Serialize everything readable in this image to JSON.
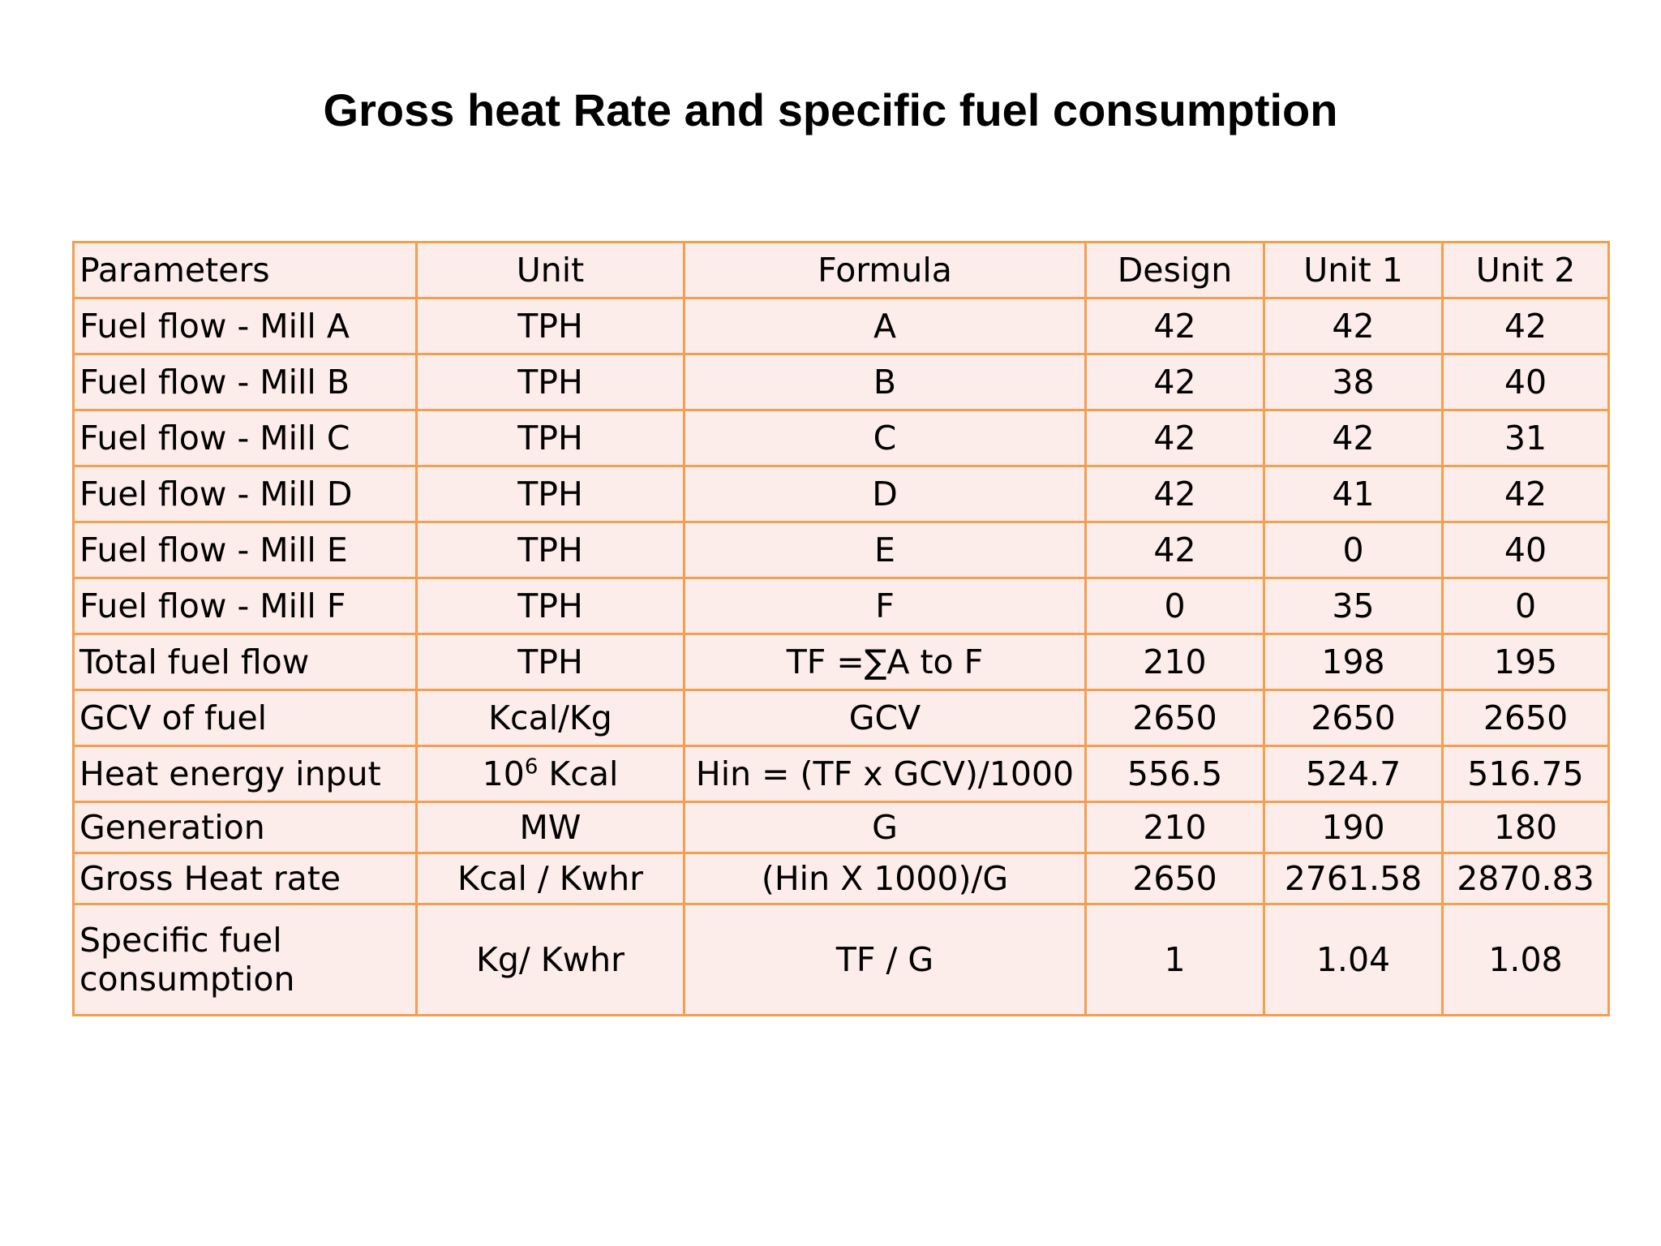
{
  "title": "Gross heat Rate and specific fuel consumption",
  "table": {
    "headers": [
      "Parameters",
      "Unit",
      "Formula",
      "Design",
      "Unit 1",
      "Unit 2"
    ],
    "rows": [
      [
        "Fuel flow - Mill A",
        "TPH",
        "A",
        "42",
        "42",
        "42"
      ],
      [
        "Fuel flow - Mill B",
        "TPH",
        "B",
        "42",
        "38",
        "40"
      ],
      [
        "Fuel flow - Mill C",
        "TPH",
        "C",
        "42",
        "42",
        "31"
      ],
      [
        "Fuel flow - Mill D",
        "TPH",
        "D",
        "42",
        "41",
        "42"
      ],
      [
        "Fuel flow - Mill E",
        "TPH",
        "E",
        "42",
        "0",
        "40"
      ],
      [
        "Fuel flow - Mill F",
        "TPH",
        "F",
        "0",
        "35",
        "0"
      ],
      [
        "Total fuel flow",
        "TPH",
        "TF =∑A to F",
        "210",
        "198",
        "195"
      ],
      [
        "GCV of fuel",
        "Kcal/Kg",
        "GCV",
        "2650",
        "2650",
        "2650"
      ],
      [
        "Heat energy input",
        "Kcal",
        "Hin = (TF x GCV)/1000",
        "556.5",
        "524.7",
        "516.75"
      ],
      [
        "Generation",
        "MW",
        "G",
        "210",
        "190",
        "180"
      ],
      [
        "Gross Heat rate",
        "Kcal / Kwhr",
        "(Hin X 1000)/G",
        "2650",
        "2761.58",
        "2870.83"
      ],
      [
        "Specific fuel consumption",
        "Kg/ Kwhr",
        "TF / G",
        "1",
        "1.04",
        "1.08"
      ]
    ],
    "heat_unit_base": "10",
    "heat_unit_exponent": "6"
  }
}
